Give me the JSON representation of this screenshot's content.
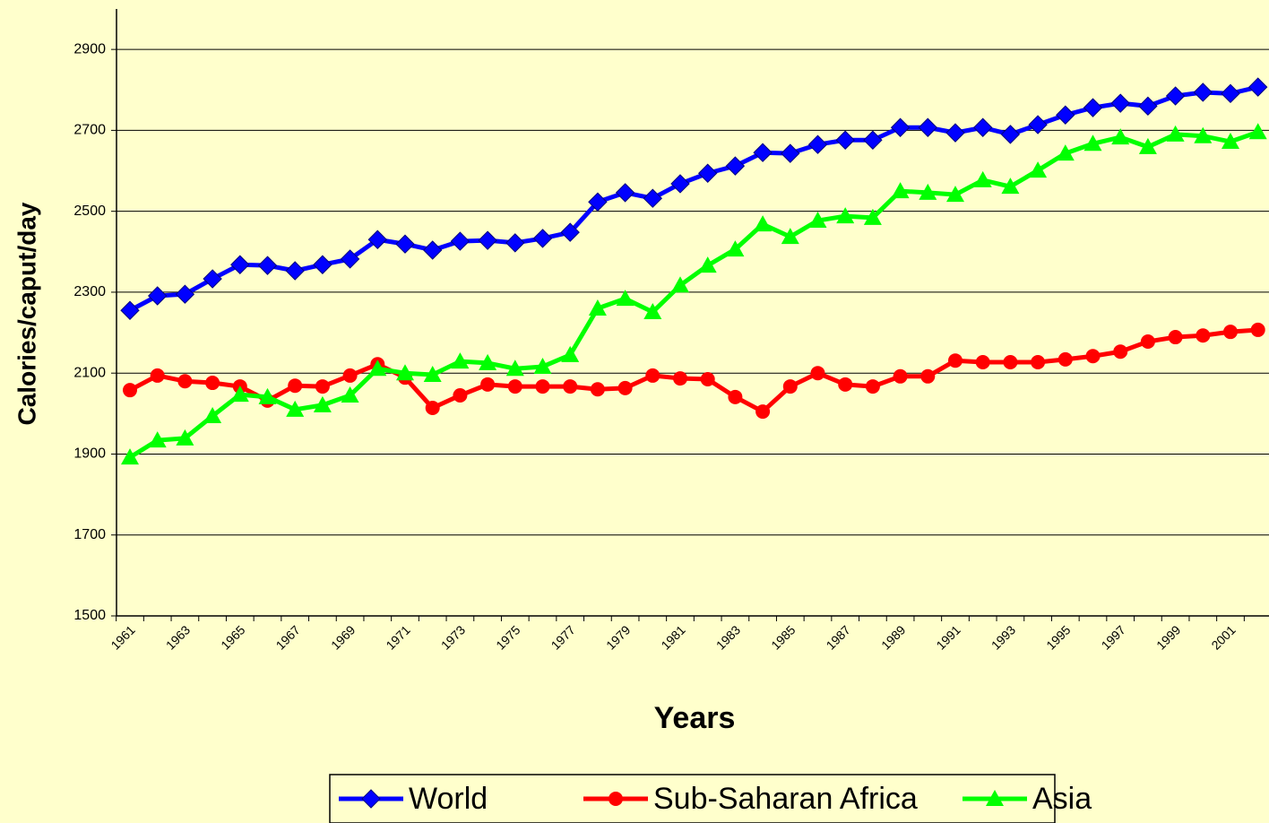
{
  "chart_data": {
    "type": "line",
    "x_label": "Years",
    "y_label": "Calories/caput/day",
    "categories": [
      "1961",
      null,
      "1963",
      null,
      "1965",
      null,
      "1967",
      null,
      "1969",
      null,
      "1971",
      null,
      "1973",
      null,
      "1975",
      null,
      "1977",
      null,
      "1979",
      null,
      "1981",
      null,
      "1983",
      null,
      "1985",
      null,
      "1987",
      null,
      "1989",
      null,
      "1991",
      null,
      "1993",
      null,
      "1995",
      null,
      "1997",
      null,
      "1999",
      null,
      "2001",
      null
    ],
    "series": [
      {
        "name": "World",
        "color": "#0000ff",
        "marker": "diamond",
        "values": [
          2255,
          2291,
          2295,
          2333,
          2368,
          2366,
          2353,
          2368,
          2382,
          2430,
          2419,
          2404,
          2426,
          2428,
          2422,
          2433,
          2448,
          2523,
          2546,
          2532,
          2568,
          2594,
          2612,
          2645,
          2643,
          2665,
          2676,
          2676,
          2707,
          2707,
          2694,
          2707,
          2690,
          2714,
          2738,
          2756,
          2767,
          2760,
          2785,
          2794,
          2791,
          2807
        ]
      },
      {
        "name": "Sub-Saharan Africa",
        "color": "#ff0000",
        "marker": "circle",
        "values": [
          2058,
          2094,
          2080,
          2076,
          2067,
          2032,
          2069,
          2067,
          2094,
          2122,
          2089,
          2014,
          2045,
          2072,
          2067,
          2067,
          2067,
          2060,
          2063,
          2094,
          2087,
          2085,
          2041,
          2005,
          2067,
          2100,
          2072,
          2067,
          2092,
          2092,
          2131,
          2127,
          2127,
          2127,
          2134,
          2142,
          2153,
          2178,
          2189,
          2193,
          2202,
          2207
        ]
      },
      {
        "name": "Asia",
        "color": "#00ff00",
        "marker": "triangle",
        "values": [
          1892,
          1934,
          1939,
          1994,
          2047,
          2041,
          2010,
          2021,
          2045,
          2111,
          2100,
          2096,
          2129,
          2125,
          2111,
          2116,
          2145,
          2260,
          2284,
          2251,
          2317,
          2366,
          2406,
          2468,
          2437,
          2477,
          2488,
          2484,
          2550,
          2546,
          2541,
          2577,
          2561,
          2601,
          2643,
          2667,
          2683,
          2659,
          2690,
          2686,
          2672,
          2696
        ]
      }
    ],
    "ylim": [
      1500,
      3000
    ],
    "yticks": [
      1500,
      1700,
      1900,
      2100,
      2300,
      2500,
      2700,
      2900
    ],
    "grid": true,
    "legend": "bottom"
  }
}
